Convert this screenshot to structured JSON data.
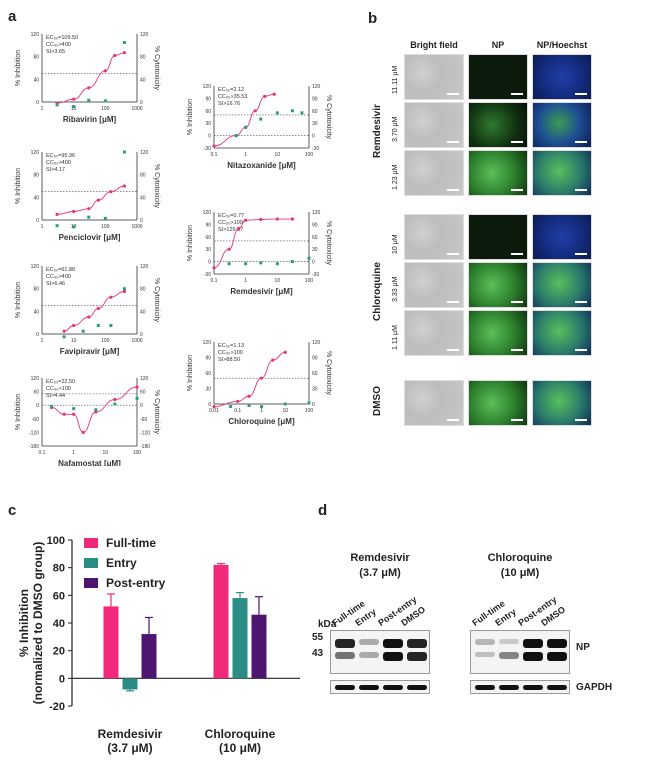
{
  "panels": {
    "a": "a",
    "b": "b",
    "c": "c",
    "d": "d"
  },
  "panel_a": {
    "y_left_label": "% Inhibition",
    "y_right_label": "% Cytotoxicity",
    "charts": [
      {
        "drug": "Ribavirin",
        "xlabel": "Ribavirin [μM]",
        "ec": "EC₅₀=109.50",
        "cc": "CC₅₀>400",
        "si": "SI>3.65",
        "xticks": [
          "1",
          "10",
          "100",
          "1000"
        ],
        "yticks": [
          "120",
          "80",
          "40",
          "0"
        ],
        "rticks": [
          "120",
          "80",
          "40",
          "0"
        ],
        "inhibition": [
          [
            3,
            -2
          ],
          [
            10,
            5
          ],
          [
            30,
            25
          ],
          [
            100,
            55
          ],
          [
            200,
            82
          ],
          [
            400,
            87
          ]
        ],
        "cytotox": [
          [
            3,
            -5
          ],
          [
            10,
            -8
          ],
          [
            30,
            3
          ],
          [
            100,
            2
          ],
          [
            400,
            105
          ]
        ],
        "xrange": [
          1,
          1000
        ]
      },
      {
        "drug": "Penciclovir",
        "xlabel": "Penciclovir [μM]",
        "ec": "EC₅₀=95.96",
        "cc": "CC₅₀>400",
        "si": "SI>4.17",
        "xticks": [
          "1",
          "10",
          "100",
          "1000"
        ],
        "yticks": [
          "120",
          "80",
          "40",
          "0"
        ],
        "rticks": [
          "120",
          "80",
          "40",
          "0"
        ],
        "inhibition": [
          [
            3,
            10
          ],
          [
            10,
            15
          ],
          [
            30,
            20
          ],
          [
            60,
            35
          ],
          [
            150,
            50
          ],
          [
            400,
            60
          ]
        ],
        "cytotox": [
          [
            3,
            -10
          ],
          [
            10,
            -12
          ],
          [
            30,
            5
          ],
          [
            100,
            3
          ],
          [
            400,
            120
          ]
        ],
        "xrange": [
          1,
          1000
        ]
      },
      {
        "drug": "Favipiravir",
        "xlabel": "Favipiravir [μM]",
        "ec": "EC₅₀=61.88",
        "cc": "CC₅₀>400",
        "si": "SI>6.46",
        "xticks": [
          "1",
          "10",
          "100",
          "1000"
        ],
        "yticks": [
          "120",
          "80",
          "40",
          "0"
        ],
        "rticks": [
          "120",
          "80",
          "40",
          "0"
        ],
        "inhibition": [
          [
            5,
            5
          ],
          [
            10,
            15
          ],
          [
            30,
            30
          ],
          [
            60,
            45
          ],
          [
            150,
            65
          ],
          [
            400,
            75
          ]
        ],
        "cytotox": [
          [
            5,
            -5
          ],
          [
            20,
            5
          ],
          [
            60,
            15
          ],
          [
            150,
            15
          ],
          [
            400,
            80
          ]
        ],
        "xrange": [
          1,
          1000
        ]
      },
      {
        "drug": "Nafamostat",
        "xlabel": "Nafamostat [μM]",
        "ec": "EC₅₀=22.50",
        "cc": "CC₅₀>100",
        "si": "SI>4.44",
        "xticks": [
          "0.1",
          "1",
          "10",
          "100"
        ],
        "yticks": [
          "120",
          "60",
          "0",
          "-60",
          "-120",
          "-180"
        ],
        "rticks": [
          "120",
          "60",
          "0",
          "-60",
          "-120",
          "-180"
        ],
        "inhibition": [
          [
            0.2,
            -10
          ],
          [
            0.5,
            -40
          ],
          [
            1,
            -40
          ],
          [
            2,
            -120
          ],
          [
            5,
            -30
          ],
          [
            20,
            25
          ],
          [
            100,
            80
          ]
        ],
        "cytotox": [
          [
            0.2,
            -5
          ],
          [
            1,
            -15
          ],
          [
            5,
            -20
          ],
          [
            20,
            5
          ],
          [
            100,
            30
          ]
        ],
        "xrange": [
          0.1,
          100
        ]
      },
      {
        "drug": "Nitazoxanide",
        "xlabel": "Nitazoxanide [μM]",
        "ec": "EC₅₀=2.12",
        "cc": "CC₅₀>35.53",
        "si": "SI>16.76",
        "xticks": [
          "0.1",
          "1",
          "10",
          "100"
        ],
        "yticks": [
          "120",
          "90",
          "60",
          "30",
          "0",
          "-30"
        ],
        "rticks": [
          "120",
          "90",
          "60",
          "30",
          "0",
          "-30"
        ],
        "inhibition": [
          [
            0.1,
            -25
          ],
          [
            0.5,
            0
          ],
          [
            1,
            20
          ],
          [
            2,
            60
          ],
          [
            4,
            95
          ],
          [
            8,
            100
          ]
        ],
        "cytotox": [
          [
            0.5,
            0
          ],
          [
            1,
            20
          ],
          [
            3,
            40
          ],
          [
            10,
            55
          ],
          [
            30,
            60
          ],
          [
            60,
            55
          ]
        ],
        "xrange": [
          0.1,
          100
        ]
      },
      {
        "drug": "Remdesivir",
        "xlabel": "Remdesivir [μM]",
        "ec": "EC₅₀=0.77",
        "cc": "CC₅₀>100",
        "si": "SI>129.87",
        "xticks": [
          "0.1",
          "1",
          "10",
          "100"
        ],
        "yticks": [
          "120",
          "90",
          "60",
          "30",
          "0",
          "-30"
        ],
        "rticks": [
          "120",
          "90",
          "60",
          "30",
          "0",
          "-30"
        ],
        "inhibition": [
          [
            0.1,
            -15
          ],
          [
            0.3,
            30
          ],
          [
            0.6,
            80
          ],
          [
            1,
            100
          ],
          [
            3,
            102
          ],
          [
            10,
            103
          ],
          [
            30,
            103
          ]
        ],
        "cytotox": [
          [
            0.3,
            -5
          ],
          [
            1,
            -5
          ],
          [
            3,
            -3
          ],
          [
            10,
            -5
          ],
          [
            30,
            0
          ],
          [
            100,
            8
          ]
        ],
        "xrange": [
          0.1,
          100
        ]
      },
      {
        "drug": "Chloroquine",
        "xlabel": "Chloroquine [μM]",
        "ec": "EC₅₀=1.13",
        "cc": "CC₅₀>100",
        "si": "SI>88.50",
        "xticks": [
          "0.01",
          "0.1",
          "1",
          "10",
          "100"
        ],
        "yticks": [
          "120",
          "90",
          "60",
          "30",
          "0"
        ],
        "rticks": [
          "120",
          "90",
          "60",
          "30",
          "0"
        ],
        "inhibition": [
          [
            0.01,
            -5
          ],
          [
            0.1,
            5
          ],
          [
            0.3,
            15
          ],
          [
            1,
            50
          ],
          [
            3,
            85
          ],
          [
            10,
            100
          ]
        ],
        "cytotox": [
          [
            0.05,
            -5
          ],
          [
            0.3,
            -3
          ],
          [
            1,
            -5
          ],
          [
            10,
            0
          ],
          [
            100,
            2
          ]
        ],
        "xrange": [
          0.01,
          100
        ]
      }
    ]
  },
  "panel_b": {
    "headers": [
      "Bright field",
      "NP",
      "NP/Hoechst"
    ],
    "groups": [
      {
        "name": "Remdesivir",
        "concentrations": [
          "11.11 μM",
          "3.70 μM",
          "1.23 μM"
        ]
      },
      {
        "name": "Chloroquine",
        "concentrations": [
          "10 μM",
          "3.33 μM",
          "1.11 μM"
        ]
      },
      {
        "name": "DMSO",
        "concentrations": [
          ""
        ]
      }
    ]
  },
  "chart_data": {
    "type": "bar",
    "categories": [
      "Remdesivir\n(3.7 μM)",
      "Chloroquine\n(10 μM)"
    ],
    "category_lines": [
      [
        "Remdesivir",
        "(3.7 μM)"
      ],
      [
        "Chloroquine",
        "(10 μM)"
      ]
    ],
    "series": [
      {
        "name": "Full-time",
        "values": [
          52,
          82
        ],
        "errors": [
          9,
          1
        ],
        "color": "#f0297a"
      },
      {
        "name": "Entry",
        "values": [
          -8,
          58
        ],
        "errors": [
          1,
          4
        ],
        "color": "#2a8c84"
      },
      {
        "name": "Post-entry",
        "values": [
          32,
          46
        ],
        "errors": [
          12,
          13
        ],
        "color": "#4e1570"
      }
    ],
    "ylabel_line1": "% Inhibition",
    "ylabel_line2": "(normalized to DMSO group)",
    "ylim": [
      -20,
      100
    ],
    "yticks": [
      -20,
      0,
      20,
      40,
      60,
      80,
      100
    ],
    "legend": "top-left"
  },
  "panel_d": {
    "blots": [
      {
        "title1": "Remdesivir",
        "title2": "(3.7 μM)"
      },
      {
        "title1": "Chloroquine",
        "title2": "(10 μM)"
      }
    ],
    "lanes": [
      "Full-time",
      "Entry",
      "Post-entry",
      "DMSO"
    ],
    "kda": "kDa",
    "markers": [
      "55",
      "43"
    ],
    "np_label": "NP",
    "gapdh_label": "GAPDH"
  }
}
